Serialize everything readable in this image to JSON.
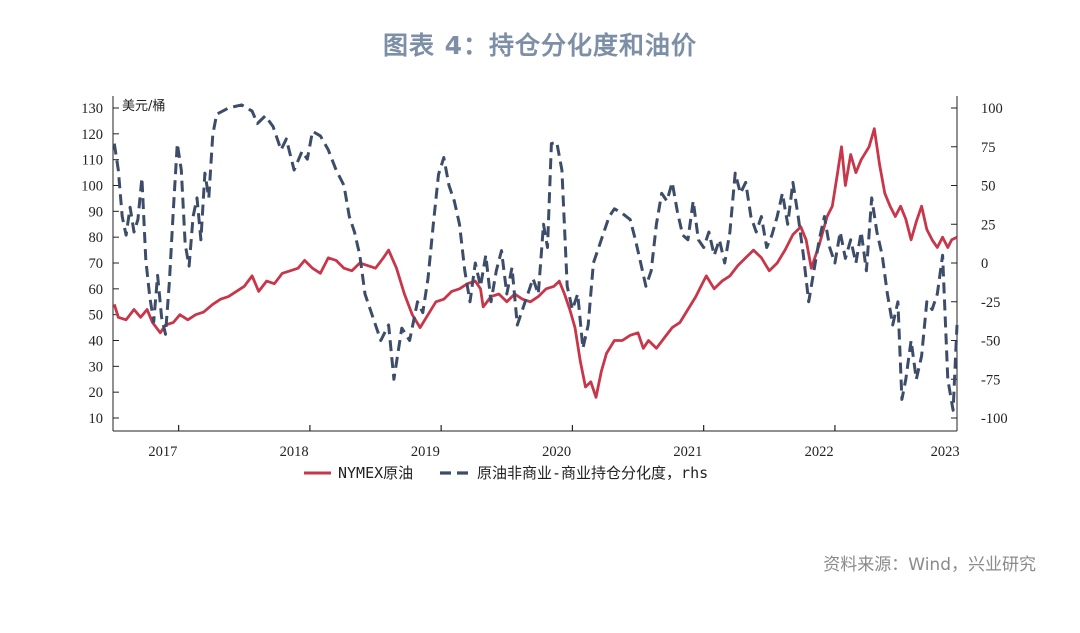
{
  "page": {
    "title": "图表 4：持仓分化度和油价",
    "source": "资料来源：Wind，兴业研究"
  },
  "chart_data": {
    "type": "line",
    "title": "",
    "ylabel": "美元/桶",
    "ylabel_right": "",
    "ylim": [
      10,
      130
    ],
    "y_ticks": [
      10,
      20,
      30,
      40,
      50,
      60,
      70,
      80,
      90,
      100,
      110,
      120,
      130
    ],
    "ylim_right": [
      -100,
      100
    ],
    "y_ticks_right": [
      -100,
      -75,
      -50,
      -25,
      0,
      25,
      50,
      75,
      100
    ],
    "xlim": [
      2016.62,
      2023.05
    ],
    "x_tick_labels": [
      {
        "label": "2017",
        "x": 2017.0
      },
      {
        "label": "2018",
        "x": 2018.0
      },
      {
        "label": "2019",
        "x": 2019.0
      },
      {
        "label": "2020",
        "x": 2020.0
      },
      {
        "label": "2021",
        "x": 2021.0
      },
      {
        "label": "2022",
        "x": 2022.0
      },
      {
        "label": "2023",
        "x": 2022.96
      }
    ],
    "x_tick_marks": [
      2017.12,
      2018.12,
      2019.12,
      2020.12,
      2021.12,
      2022.12
    ],
    "legend_position": "bottom",
    "series": [
      {
        "name": "NYMEX原油",
        "axis": "left",
        "color": "#c8364a",
        "style": "solid",
        "points": [
          [
            2016.63,
            54
          ],
          [
            2016.66,
            49
          ],
          [
            2016.72,
            48
          ],
          [
            2016.78,
            52
          ],
          [
            2016.83,
            49
          ],
          [
            2016.88,
            52
          ],
          [
            2016.92,
            47
          ],
          [
            2016.98,
            43
          ],
          [
            2017.02,
            46
          ],
          [
            2017.08,
            47
          ],
          [
            2017.13,
            50
          ],
          [
            2017.19,
            48
          ],
          [
            2017.25,
            50
          ],
          [
            2017.31,
            51
          ],
          [
            2017.38,
            54
          ],
          [
            2017.44,
            56
          ],
          [
            2017.5,
            57
          ],
          [
            2017.56,
            59
          ],
          [
            2017.62,
            61
          ],
          [
            2017.68,
            65
          ],
          [
            2017.73,
            59
          ],
          [
            2017.79,
            63
          ],
          [
            2017.85,
            62
          ],
          [
            2017.91,
            66
          ],
          [
            2017.97,
            67
          ],
          [
            2018.03,
            68
          ],
          [
            2018.08,
            71
          ],
          [
            2018.14,
            68
          ],
          [
            2018.2,
            66
          ],
          [
            2018.26,
            72
          ],
          [
            2018.32,
            71
          ],
          [
            2018.38,
            68
          ],
          [
            2018.44,
            67
          ],
          [
            2018.5,
            70
          ],
          [
            2018.56,
            69
          ],
          [
            2018.62,
            68
          ],
          [
            2018.68,
            72
          ],
          [
            2018.72,
            75
          ],
          [
            2018.78,
            68
          ],
          [
            2018.84,
            58
          ],
          [
            2018.9,
            50
          ],
          [
            2018.96,
            45
          ],
          [
            2019.02,
            50
          ],
          [
            2019.08,
            55
          ],
          [
            2019.14,
            56
          ],
          [
            2019.2,
            59
          ],
          [
            2019.26,
            60
          ],
          [
            2019.32,
            62
          ],
          [
            2019.38,
            63
          ],
          [
            2019.42,
            60
          ],
          [
            2019.44,
            53
          ],
          [
            2019.5,
            57
          ],
          [
            2019.56,
            58
          ],
          [
            2019.62,
            55
          ],
          [
            2019.68,
            58
          ],
          [
            2019.74,
            56
          ],
          [
            2019.8,
            55
          ],
          [
            2019.86,
            57
          ],
          [
            2019.92,
            60
          ],
          [
            2019.98,
            61
          ],
          [
            2020.02,
            63
          ],
          [
            2020.06,
            58
          ],
          [
            2020.1,
            52
          ],
          [
            2020.14,
            45
          ],
          [
            2020.18,
            32
          ],
          [
            2020.22,
            22
          ],
          [
            2020.26,
            24
          ],
          [
            2020.3,
            18
          ],
          [
            2020.34,
            28
          ],
          [
            2020.38,
            35
          ],
          [
            2020.44,
            40
          ],
          [
            2020.5,
            40
          ],
          [
            2020.56,
            42
          ],
          [
            2020.62,
            43
          ],
          [
            2020.66,
            37
          ],
          [
            2020.7,
            40
          ],
          [
            2020.76,
            37
          ],
          [
            2020.82,
            41
          ],
          [
            2020.88,
            45
          ],
          [
            2020.94,
            47
          ],
          [
            2021.0,
            52
          ],
          [
            2021.06,
            57
          ],
          [
            2021.1,
            61
          ],
          [
            2021.14,
            65
          ],
          [
            2021.2,
            60
          ],
          [
            2021.26,
            63
          ],
          [
            2021.32,
            65
          ],
          [
            2021.38,
            69
          ],
          [
            2021.44,
            72
          ],
          [
            2021.5,
            75
          ],
          [
            2021.56,
            72
          ],
          [
            2021.62,
            67
          ],
          [
            2021.68,
            70
          ],
          [
            2021.74,
            75
          ],
          [
            2021.8,
            81
          ],
          [
            2021.86,
            84
          ],
          [
            2021.9,
            79
          ],
          [
            2021.94,
            68
          ],
          [
            2022.0,
            77
          ],
          [
            2022.06,
            88
          ],
          [
            2022.1,
            92
          ],
          [
            2022.14,
            105
          ],
          [
            2022.17,
            115
          ],
          [
            2022.2,
            100
          ],
          [
            2022.24,
            112
          ],
          [
            2022.28,
            105
          ],
          [
            2022.32,
            110
          ],
          [
            2022.38,
            115
          ],
          [
            2022.42,
            122
          ],
          [
            2022.46,
            108
          ],
          [
            2022.5,
            97
          ],
          [
            2022.54,
            92
          ],
          [
            2022.58,
            88
          ],
          [
            2022.62,
            92
          ],
          [
            2022.66,
            87
          ],
          [
            2022.7,
            79
          ],
          [
            2022.74,
            86
          ],
          [
            2022.78,
            92
          ],
          [
            2022.82,
            83
          ],
          [
            2022.86,
            79
          ],
          [
            2022.9,
            76
          ],
          [
            2022.94,
            80
          ],
          [
            2022.98,
            76
          ],
          [
            2023.01,
            79
          ],
          [
            2023.05,
            80
          ]
        ]
      },
      {
        "name": "原油非商业-商业持仓分化度，rhs",
        "axis": "right",
        "color": "#3d4d69",
        "style": "dashed",
        "points": [
          [
            2016.63,
            77
          ],
          [
            2016.66,
            60
          ],
          [
            2016.69,
            30
          ],
          [
            2016.72,
            18
          ],
          [
            2016.75,
            36
          ],
          [
            2016.78,
            20
          ],
          [
            2016.81,
            28
          ],
          [
            2016.84,
            55
          ],
          [
            2016.87,
            2
          ],
          [
            2016.9,
            -22
          ],
          [
            2016.93,
            -38
          ],
          [
            2016.96,
            -8
          ],
          [
            2016.99,
            -35
          ],
          [
            2017.02,
            -46
          ],
          [
            2017.05,
            -12
          ],
          [
            2017.08,
            35
          ],
          [
            2017.11,
            77
          ],
          [
            2017.14,
            60
          ],
          [
            2017.17,
            12
          ],
          [
            2017.2,
            -2
          ],
          [
            2017.23,
            30
          ],
          [
            2017.26,
            42
          ],
          [
            2017.29,
            15
          ],
          [
            2017.32,
            58
          ],
          [
            2017.35,
            42
          ],
          [
            2017.38,
            83
          ],
          [
            2017.41,
            96
          ],
          [
            2017.5,
            100
          ],
          [
            2017.6,
            102
          ],
          [
            2017.68,
            98
          ],
          [
            2017.72,
            90
          ],
          [
            2017.78,
            95
          ],
          [
            2017.84,
            88
          ],
          [
            2017.9,
            73
          ],
          [
            2017.94,
            80
          ],
          [
            2018.0,
            60
          ],
          [
            2018.06,
            72
          ],
          [
            2018.1,
            67
          ],
          [
            2018.14,
            85
          ],
          [
            2018.2,
            82
          ],
          [
            2018.26,
            73
          ],
          [
            2018.32,
            60
          ],
          [
            2018.38,
            50
          ],
          [
            2018.42,
            30
          ],
          [
            2018.46,
            20
          ],
          [
            2018.5,
            5
          ],
          [
            2018.54,
            -20
          ],
          [
            2018.6,
            -35
          ],
          [
            2018.66,
            -50
          ],
          [
            2018.72,
            -40
          ],
          [
            2018.76,
            -75
          ],
          [
            2018.82,
            -42
          ],
          [
            2018.88,
            -50
          ],
          [
            2018.94,
            -25
          ],
          [
            2018.98,
            -32
          ],
          [
            2019.02,
            -10
          ],
          [
            2019.06,
            25
          ],
          [
            2019.1,
            57
          ],
          [
            2019.14,
            68
          ],
          [
            2019.18,
            50
          ],
          [
            2019.22,
            40
          ],
          [
            2019.26,
            25
          ],
          [
            2019.3,
            -5
          ],
          [
            2019.34,
            -25
          ],
          [
            2019.38,
            0
          ],
          [
            2019.42,
            -15
          ],
          [
            2019.46,
            5
          ],
          [
            2019.5,
            -25
          ],
          [
            2019.54,
            -5
          ],
          [
            2019.58,
            8
          ],
          [
            2019.62,
            -20
          ],
          [
            2019.66,
            -3
          ],
          [
            2019.7,
            -40
          ],
          [
            2019.74,
            -30
          ],
          [
            2019.78,
            -20
          ],
          [
            2019.82,
            -10
          ],
          [
            2019.86,
            -20
          ],
          [
            2019.9,
            25
          ],
          [
            2019.93,
            10
          ],
          [
            2019.96,
            77
          ],
          [
            2020.0,
            78
          ],
          [
            2020.04,
            60
          ],
          [
            2020.08,
            -15
          ],
          [
            2020.12,
            -30
          ],
          [
            2020.16,
            -20
          ],
          [
            2020.2,
            -55
          ],
          [
            2020.24,
            -40
          ],
          [
            2020.28,
            0
          ],
          [
            2020.32,
            10
          ],
          [
            2020.36,
            20
          ],
          [
            2020.4,
            30
          ],
          [
            2020.44,
            35
          ],
          [
            2020.5,
            32
          ],
          [
            2020.56,
            28
          ],
          [
            2020.6,
            15
          ],
          [
            2020.64,
            0
          ],
          [
            2020.68,
            -15
          ],
          [
            2020.72,
            -5
          ],
          [
            2020.76,
            25
          ],
          [
            2020.8,
            45
          ],
          [
            2020.84,
            40
          ],
          [
            2020.88,
            52
          ],
          [
            2020.92,
            33
          ],
          [
            2020.96,
            18
          ],
          [
            2021.0,
            15
          ],
          [
            2021.04,
            40
          ],
          [
            2021.08,
            15
          ],
          [
            2021.12,
            10
          ],
          [
            2021.16,
            20
          ],
          [
            2021.2,
            5
          ],
          [
            2021.24,
            15
          ],
          [
            2021.28,
            0
          ],
          [
            2021.32,
            20
          ],
          [
            2021.36,
            58
          ],
          [
            2021.4,
            45
          ],
          [
            2021.44,
            52
          ],
          [
            2021.48,
            30
          ],
          [
            2021.52,
            20
          ],
          [
            2021.56,
            30
          ],
          [
            2021.6,
            10
          ],
          [
            2021.64,
            18
          ],
          [
            2021.68,
            30
          ],
          [
            2021.72,
            45
          ],
          [
            2021.76,
            25
          ],
          [
            2021.8,
            52
          ],
          [
            2021.84,
            30
          ],
          [
            2021.88,
            5
          ],
          [
            2021.92,
            -25
          ],
          [
            2021.96,
            -5
          ],
          [
            2022.0,
            15
          ],
          [
            2022.04,
            30
          ],
          [
            2022.08,
            10
          ],
          [
            2022.12,
            0
          ],
          [
            2022.16,
            20
          ],
          [
            2022.2,
            3
          ],
          [
            2022.24,
            15
          ],
          [
            2022.28,
            0
          ],
          [
            2022.32,
            20
          ],
          [
            2022.36,
            -5
          ],
          [
            2022.4,
            42
          ],
          [
            2022.44,
            20
          ],
          [
            2022.48,
            5
          ],
          [
            2022.52,
            -20
          ],
          [
            2022.56,
            -40
          ],
          [
            2022.6,
            -25
          ],
          [
            2022.63,
            -88
          ],
          [
            2022.66,
            -75
          ],
          [
            2022.7,
            -50
          ],
          [
            2022.74,
            -75
          ],
          [
            2022.78,
            -60
          ],
          [
            2022.82,
            -25
          ],
          [
            2022.86,
            -30
          ],
          [
            2022.9,
            -20
          ],
          [
            2022.94,
            5
          ],
          [
            2022.98,
            -75
          ],
          [
            2023.02,
            -95
          ],
          [
            2023.05,
            -40
          ]
        ]
      }
    ]
  }
}
